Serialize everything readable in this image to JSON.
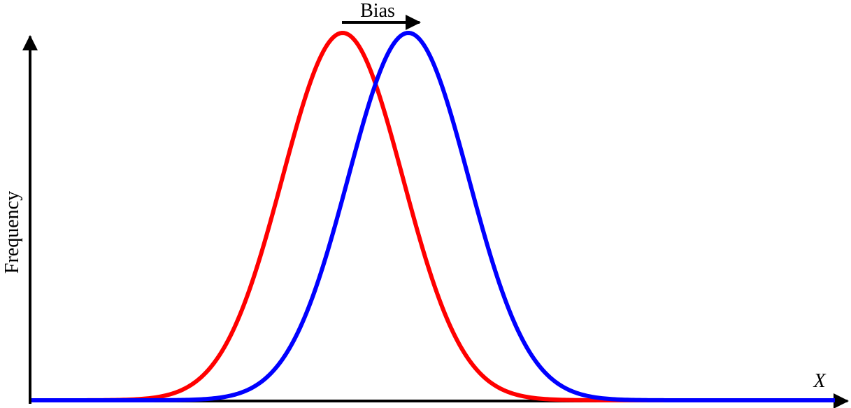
{
  "annotation": "Bias",
  "y_axis_label": "Frequency",
  "x_axis_label": "X"
}
